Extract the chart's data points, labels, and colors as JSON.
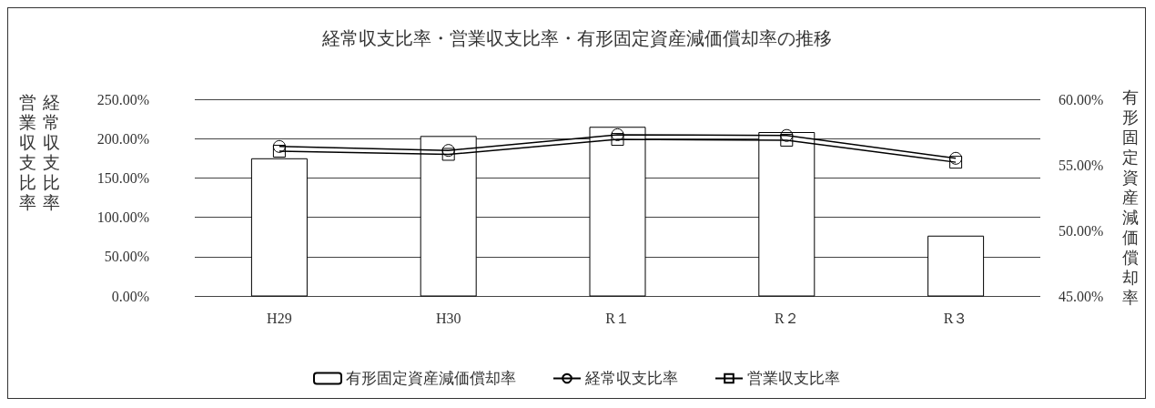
{
  "chart_data": {
    "type": "bar",
    "title": "経常収支比率・営業収支比率・有形固定資産減価償却率の推移",
    "ylabel": "経常収支比率",
    "y2label": "有形固定資産減価償却率",
    "annotations": [
      "営業収支比率"
    ],
    "categories": [
      "H29",
      "H30",
      "R１",
      "R２",
      "R３"
    ],
    "series": [
      {
        "name": "有形固定資産減価償却率",
        "axis": "y2",
        "color": "#ffffff",
        "values": [
          55.5,
          57.2,
          57.9,
          57.5,
          49.6
        ]
      },
      {
        "name": "経常収支比率",
        "type": "line",
        "color": "#000000",
        "marker": "circle",
        "values": [
          190,
          185,
          205,
          204,
          175
        ]
      },
      {
        "name": "営業収支比率",
        "type": "line",
        "color": "#000000",
        "marker": "square",
        "values": [
          184,
          180,
          199,
          198,
          170
        ]
      }
    ],
    "ylim": [
      0,
      250
    ],
    "yticks": [
      {
        "value": 0,
        "label": "0.00%"
      },
      {
        "value": 50,
        "label": "50.00%"
      },
      {
        "value": 100,
        "label": "100.00%"
      },
      {
        "value": 150,
        "label": "150.00%"
      },
      {
        "value": 200,
        "label": "200.00%"
      },
      {
        "value": 250,
        "label": "250.00%"
      }
    ],
    "y2lim": [
      45,
      60
    ],
    "y2ticks": [
      {
        "value": 45,
        "label": "45.00%"
      },
      {
        "value": 50,
        "label": "50.00%"
      },
      {
        "value": 55,
        "label": "55.00%"
      },
      {
        "value": 60,
        "label": "60.00%"
      }
    ],
    "grid": "y",
    "legend": "bottom"
  }
}
